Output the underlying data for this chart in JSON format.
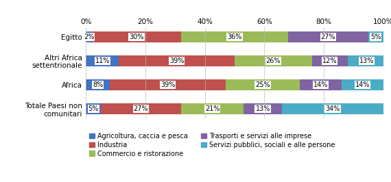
{
  "categories": [
    "Egitto",
    "Altri Africa\nsettentrionale",
    "Africa",
    "Totale Paesi non\ncomunitari"
  ],
  "series_order": [
    "Agricoltura, caccia e pesca",
    "Industria",
    "Commercio e ristorazione",
    "Trasporti e servizi alle imprese",
    "Servizi pubblici, sociali e alle persone"
  ],
  "series": {
    "Agricoltura, caccia e pesca": [
      2,
      11,
      8,
      5
    ],
    "Industria": [
      30,
      39,
      39,
      27
    ],
    "Commercio e ristorazione": [
      36,
      26,
      25,
      21
    ],
    "Trasporti e servizi alle imprese": [
      27,
      12,
      14,
      13
    ],
    "Servizi pubblici, sociali e alle persone": [
      5,
      13,
      14,
      34
    ]
  },
  "colors": {
    "Agricoltura, caccia e pesca": "#4472C4",
    "Industria": "#C0504D",
    "Commercio e ristorazione": "#9BBB59",
    "Trasporti e servizi alle imprese": "#8064A2",
    "Servizi pubblici, sociali e alle persone": "#4BACC6"
  },
  "legend_col1": [
    "Agricoltura, caccia e pesca",
    "Commercio e ristorazione",
    "Servizi pubblici, sociali e alle persone"
  ],
  "legend_col2": [
    "Industria",
    "Trasporti e servizi alle imprese"
  ],
  "background_color": "#FFFFFF",
  "label_fontsize": 7,
  "tick_fontsize": 7.5,
  "legend_fontsize": 7,
  "bar_height": 0.45
}
